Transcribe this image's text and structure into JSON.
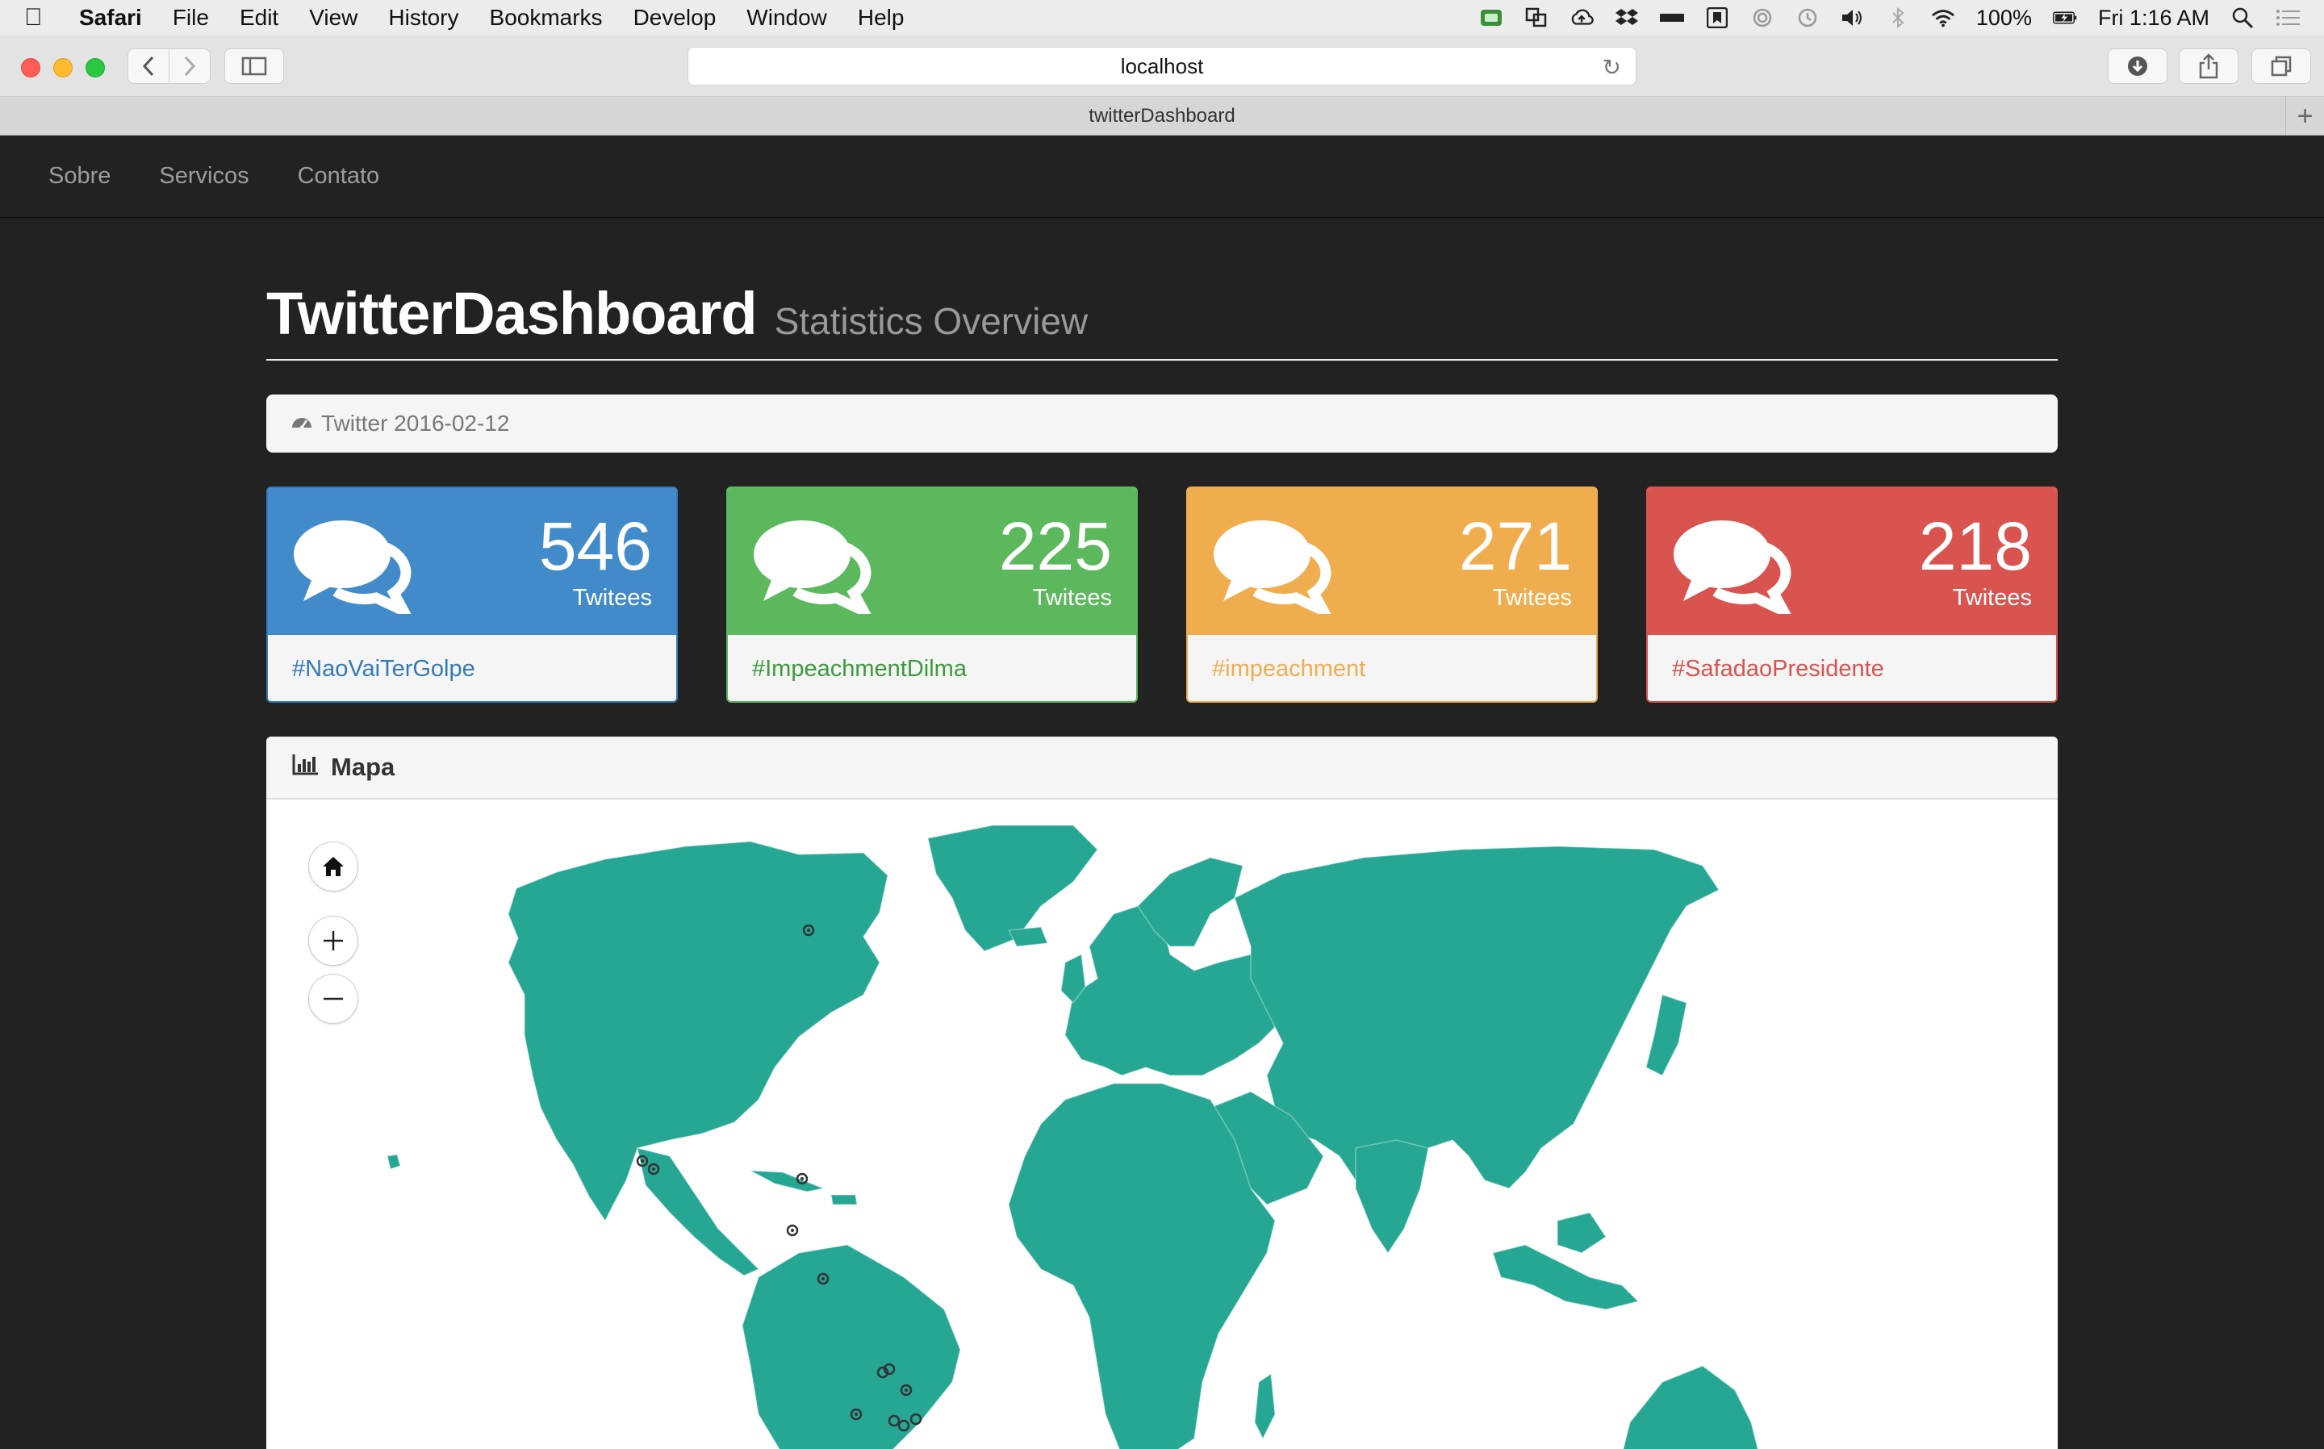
{
  "menubar": {
    "app": "Safari",
    "items": [
      "File",
      "Edit",
      "View",
      "History",
      "Bookmarks",
      "Develop",
      "Window",
      "Help"
    ],
    "battery": "100%",
    "clock": "Fri 1:16 AM"
  },
  "browser": {
    "url": "localhost",
    "tab_title": "twitterDashboard"
  },
  "nav": {
    "links": [
      "Sobre",
      "Servicos",
      "Contato"
    ]
  },
  "page": {
    "title": "TwitterDashboard",
    "subtitle": "Statistics Overview",
    "breadcrumb": "Twitter 2016-02-12"
  },
  "cards": [
    {
      "count": "546",
      "label": "Twitees",
      "hashtag": "#NaoVaiTerGolpe",
      "color": "#428bca"
    },
    {
      "count": "225",
      "label": "Twitees",
      "hashtag": "#ImpeachmentDilma",
      "color": "#5cb85c"
    },
    {
      "count": "271",
      "label": "Twitees",
      "hashtag": "#impeachment",
      "color": "#f0ad4e"
    },
    {
      "count": "218",
      "label": "Twitees",
      "hashtag": "#SafadaoPresidente",
      "color": "#d9534f"
    }
  ],
  "map_panel": {
    "title": "Mapa",
    "land_color": "#26a793",
    "controls": [
      "home-icon",
      "zoom-in-icon",
      "zoom-out-icon"
    ]
  }
}
